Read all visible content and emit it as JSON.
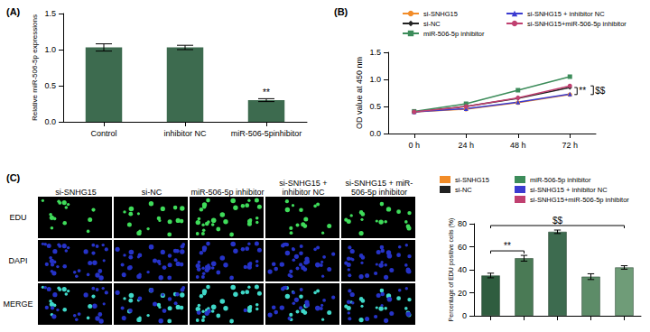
{
  "chart_data": [
    {
      "type": "bar",
      "title": "(A)",
      "categories": [
        "Control",
        "inhibitor NC",
        "miR-506-5pinhibitor"
      ],
      "values": [
        1.03,
        1.03,
        0.3
      ],
      "errors": [
        0.05,
        0.03,
        0.02
      ],
      "significance": [
        null,
        null,
        "**"
      ],
      "color": "#3d6b4f",
      "y_label": "Relative miR-506-5p expressions",
      "ylim": [
        0,
        1.5
      ],
      "yticks": [
        {
          "value": 0,
          "label": "0.0"
        },
        {
          "value": 0.5,
          "label": "0.5"
        },
        {
          "value": 1,
          "label": "1.0"
        },
        {
          "value": 1.5,
          "label": "1.5"
        }
      ],
      "grid": false
    },
    {
      "type": "line",
      "title": "(B)",
      "categories": [
        "0 h",
        "24 h",
        "48 h",
        "72 h"
      ],
      "series": [
        {
          "name": "si-SNHG15",
          "color": "#f28c28",
          "marker": "circle",
          "values": [
            0.4,
            0.45,
            0.57,
            0.72
          ]
        },
        {
          "name": "si-NC",
          "color": "#222222",
          "marker": "diamond",
          "values": [
            0.4,
            0.5,
            0.65,
            0.85
          ]
        },
        {
          "name": "miR-506-5p inhibitor",
          "color": "#3c8c5a",
          "marker": "square",
          "values": [
            0.41,
            0.55,
            0.8,
            1.05
          ]
        },
        {
          "name": "si-SNHG15 + inhibitor NC",
          "color": "#3b3bd0",
          "marker": "triangle",
          "values": [
            0.4,
            0.46,
            0.58,
            0.73
          ]
        },
        {
          "name": "si-SNHG15+miR-506-5p inhibitor",
          "color": "#c04070",
          "marker": "circle",
          "values": [
            0.4,
            0.5,
            0.66,
            0.88
          ]
        }
      ],
      "comparisons": [
        {
          "from": "si-SNHG15",
          "to": "si-NC",
          "text": "**"
        },
        {
          "from": "si-SNHG15",
          "to": "si-SNHG15+miR-506-5p inhibitor",
          "text": "$$"
        }
      ],
      "y_label": "OD value at 450 nm",
      "ylim": [
        0,
        1.5
      ],
      "yticks": [
        {
          "value": 0,
          "label": "0.0"
        },
        {
          "value": 0.5,
          "label": "0.5"
        },
        {
          "value": 1,
          "label": "1.0"
        },
        {
          "value": 1.5,
          "label": "1.5"
        }
      ],
      "grid": false,
      "legend": "top"
    },
    {
      "type": "bar",
      "title": "(C)",
      "categories": [
        "si-SNHG15",
        "si-NC",
        "miR-506-5p inhibitor",
        "si-SNHG15 + inhibitor NC",
        "si-SNHG15+miR-506-5p inhibitor"
      ],
      "values": [
        35,
        50,
        73,
        34,
        42
      ],
      "errors": [
        2,
        2.5,
        1.5,
        2.5,
        1.5
      ],
      "colors": [
        "#2f5d3f",
        "#4a7a55",
        "#3d6b4f",
        "#5d8c68",
        "#6f9c78"
      ],
      "comparisons": [
        {
          "from": "si-SNHG15",
          "to": "si-NC",
          "text": "**"
        },
        {
          "from": "si-SNHG15",
          "to": "si-SNHG15+miR-506-5p inhibitor",
          "text": "$$"
        }
      ],
      "y_label": "Percentage of EDU positive cells (%)",
      "ylim": [
        0,
        80
      ],
      "yticks": [
        0,
        20,
        40,
        60,
        80
      ],
      "grid": false,
      "legend": "top",
      "tick_labels": "y"
    }
  ],
  "image_panel": {
    "columns": [
      "si-SNHG15",
      "si-NC",
      "miR-506-5p inhibitor",
      "si-SNHG15 + inhibitor NC",
      "si-SNHG15 + miR-506-5p inhibitor"
    ],
    "rows": [
      "EDU",
      "DAPI",
      "MERGE"
    ]
  }
}
